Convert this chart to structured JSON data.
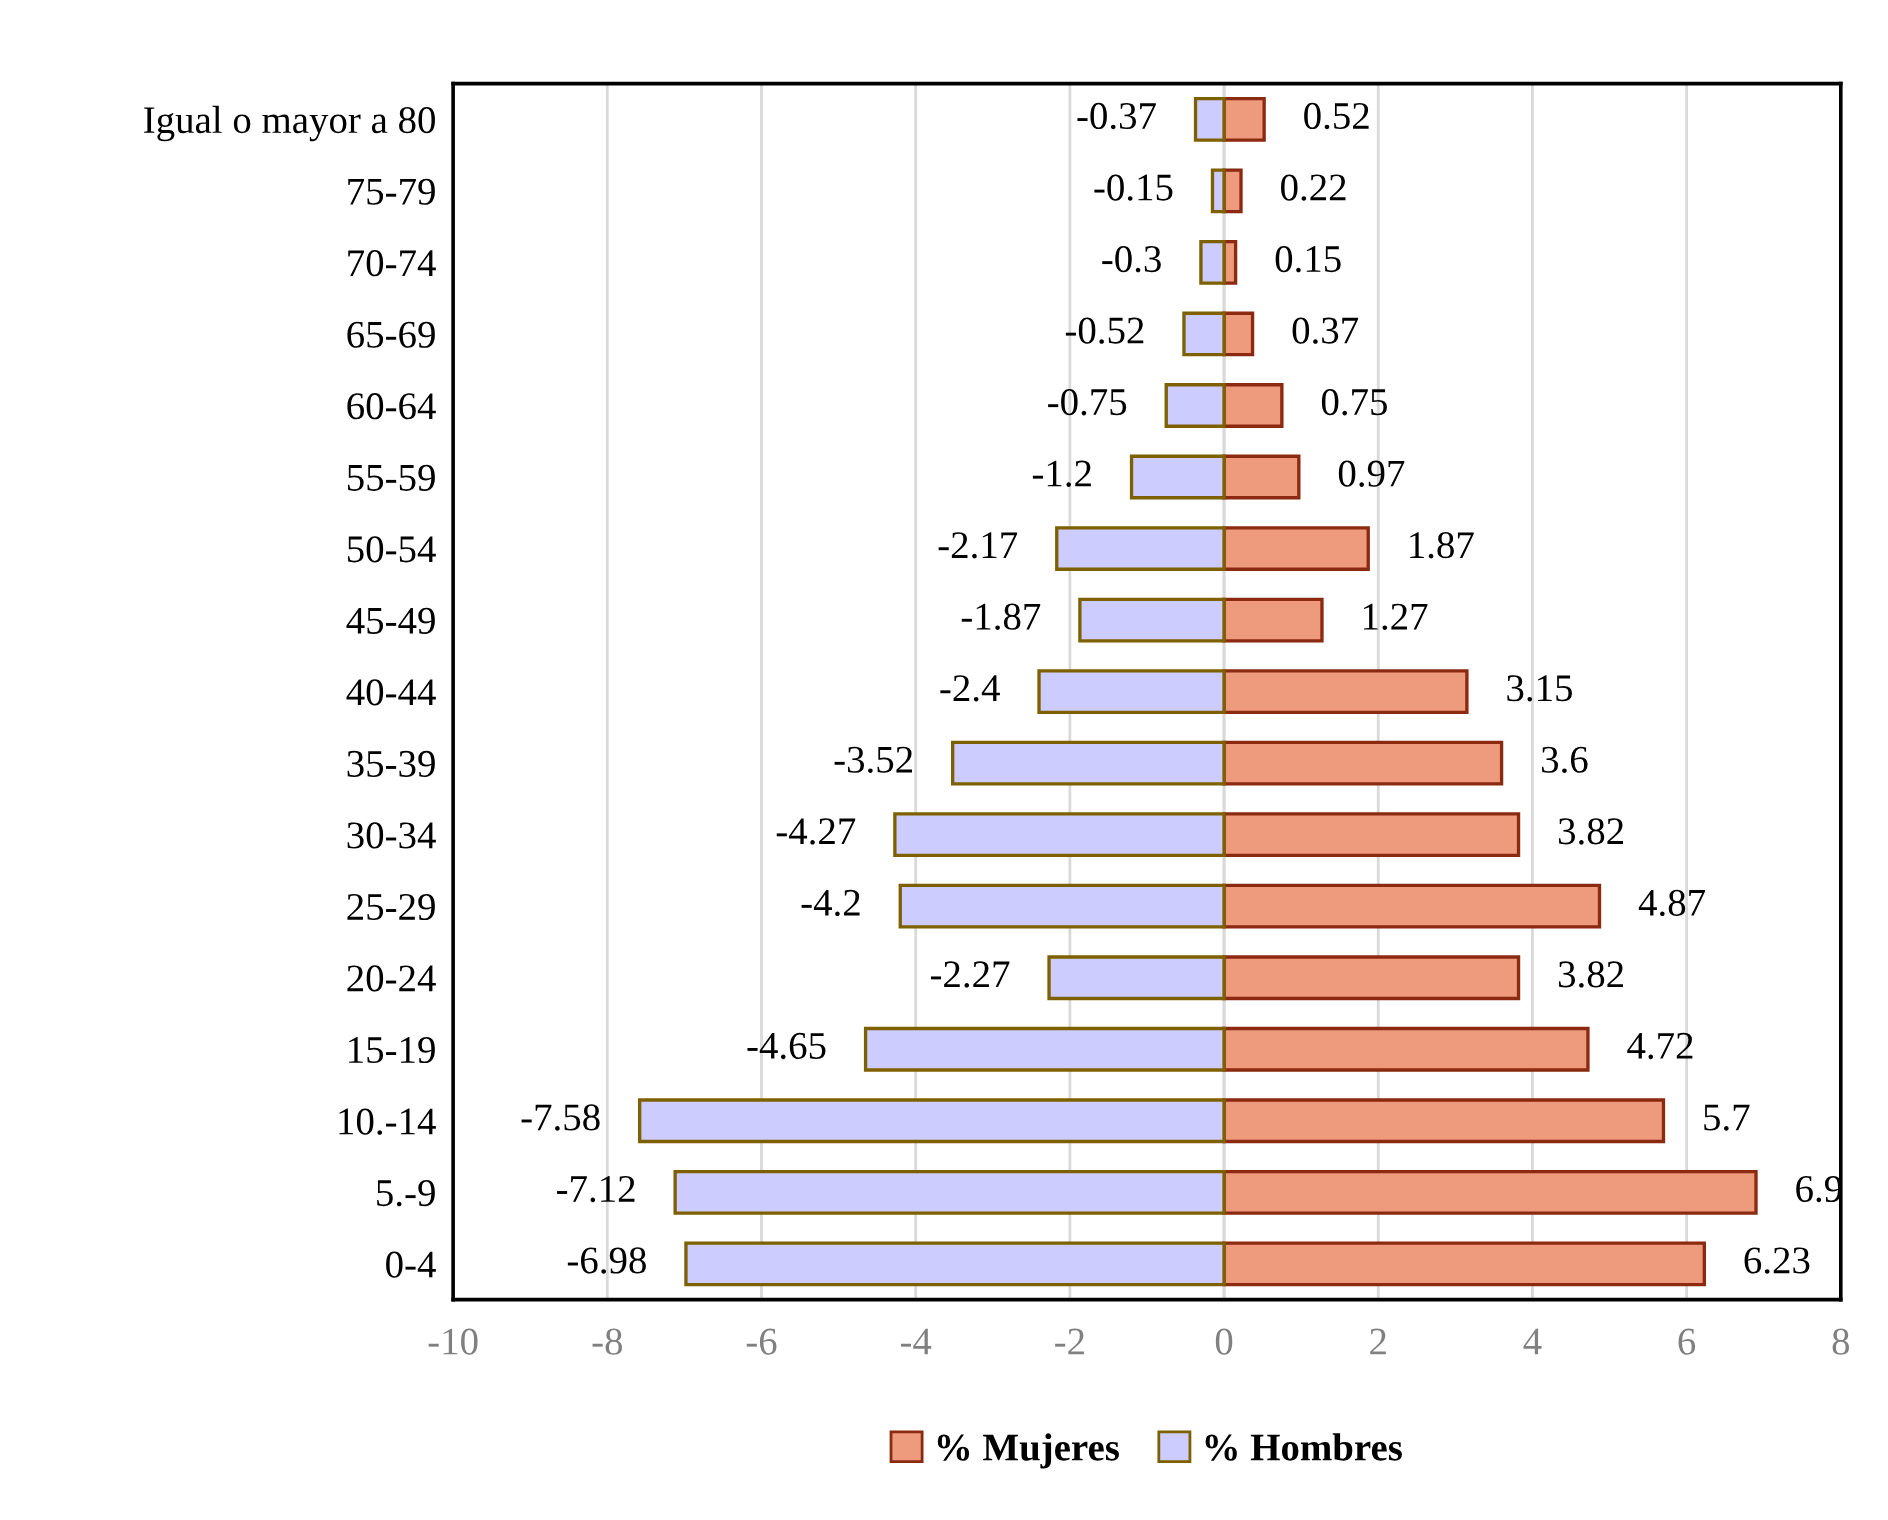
{
  "chart_data": {
    "type": "bar",
    "orientation": "horizontal",
    "categories": [
      "Igual o mayor a 80",
      "75-79",
      "70-74",
      "65-69",
      "60-64",
      "55-59",
      "50-54",
      "45-49",
      "40-44",
      "35-39",
      "30-34",
      "25-29",
      "20-24",
      "15-19",
      "10.-14",
      "5.-9",
      "0-4"
    ],
    "series": [
      {
        "name": "% Mujeres",
        "color": "#ee9a7c",
        "values": [
          0.52,
          0.22,
          0.15,
          0.37,
          0.75,
          0.97,
          1.87,
          1.27,
          3.15,
          3.6,
          3.82,
          4.87,
          3.82,
          4.72,
          5.7,
          6.9,
          6.23
        ]
      },
      {
        "name": "% Hombres",
        "color": "#ccccff",
        "values": [
          -0.37,
          -0.15,
          -0.3,
          -0.52,
          -0.75,
          -1.2,
          -2.17,
          -1.87,
          -2.4,
          -3.52,
          -4.27,
          -4.2,
          -2.27,
          -4.65,
          -7.58,
          -7.12,
          -6.98
        ]
      }
    ],
    "xlim": [
      -10,
      8
    ],
    "xticks": [
      -10,
      -8,
      -6,
      -4,
      -2,
      0,
      2,
      4,
      6,
      8
    ],
    "grid": "x",
    "stacked": true,
    "legend": "bottom",
    "data_labels": true
  }
}
